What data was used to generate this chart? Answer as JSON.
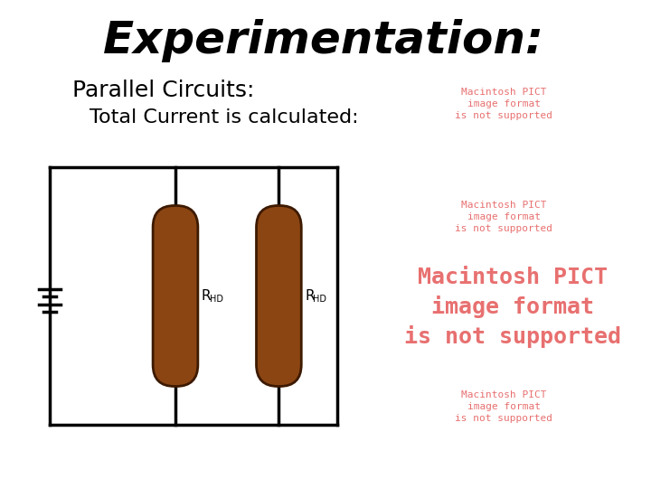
{
  "title": "Experimentation:",
  "title_fontsize": 36,
  "title_fontweight": "bold",
  "title_fontstyle": "italic",
  "subtitle1": "Parallel Circuits:",
  "subtitle1_fontsize": 18,
  "subtitle2": "Total Current is calculated:",
  "subtitle2_fontsize": 16,
  "bg_color": "#ffffff",
  "circuit_box_color": "#000000",
  "resistor_fill": "#8B4513",
  "resistor_outline": "#3d1a00",
  "resistor_label": "R",
  "resistor_sub": "HD",
  "pict_color": "#e87070",
  "pict_texts_small": [
    "Macintosh PICT\nimage format\nis not supported",
    "Macintosh PICT\nimage format\nis not supported",
    "Macintosh PICT\nimage format\nis not supported"
  ],
  "pict_text_large": "Macintosh PICT\nimage format\nis not supported"
}
